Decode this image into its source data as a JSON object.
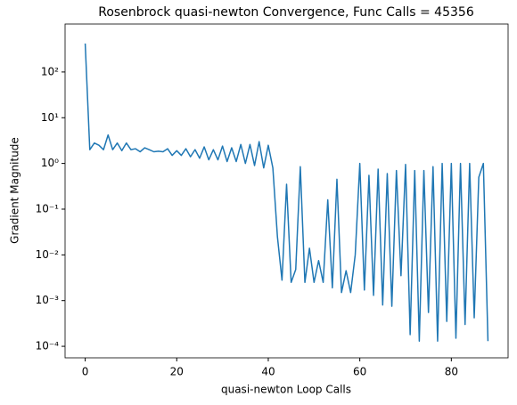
{
  "chart_data": {
    "type": "line",
    "title": "Rosenbrock quasi-newton Convergence, Func Calls = 45356",
    "xlabel": "quasi-newton Loop Calls",
    "ylabel": "Gradient Magnitude",
    "log_y": true,
    "x": [
      0,
      1,
      2,
      3,
      4,
      5,
      6,
      7,
      8,
      9,
      10,
      11,
      12,
      13,
      14,
      15,
      16,
      17,
      18,
      19,
      20,
      21,
      22,
      23,
      24,
      25,
      26,
      27,
      28,
      29,
      30,
      31,
      32,
      33,
      34,
      35,
      36,
      37,
      38,
      39,
      40,
      41,
      42,
      43,
      44,
      45,
      46,
      47,
      48,
      49,
      50,
      51,
      52,
      53,
      54,
      55,
      56,
      57,
      58,
      59,
      60,
      61,
      62,
      63,
      64,
      65,
      66,
      67,
      68,
      69,
      70,
      71,
      72,
      73,
      74,
      75,
      76,
      77,
      78,
      79,
      80,
      81,
      82,
      83,
      84,
      85,
      86,
      87,
      88
    ],
    "series": [
      {
        "color": "#1f77b4",
        "values": [
          420,
          2.0,
          2.8,
          2.5,
          2.0,
          4.2,
          2.0,
          2.8,
          1.9,
          2.8,
          2.0,
          2.1,
          1.8,
          2.2,
          2.0,
          1.8,
          1.85,
          1.8,
          2.1,
          1.5,
          1.9,
          1.5,
          2.1,
          1.4,
          2.0,
          1.3,
          2.3,
          1.2,
          2.0,
          1.2,
          2.4,
          1.1,
          2.2,
          1.1,
          2.6,
          1.0,
          2.6,
          0.9,
          3.0,
          0.8,
          2.5,
          0.8,
          0.025,
          0.0028,
          0.35,
          0.0025,
          0.0048,
          0.85,
          0.0025,
          0.014,
          0.0025,
          0.0075,
          0.0025,
          0.16,
          0.0019,
          0.45,
          0.0015,
          0.0045,
          0.0015,
          0.01,
          1.0,
          0.0017,
          0.55,
          0.0013,
          0.75,
          0.0008,
          0.6,
          0.00075,
          0.7,
          0.0035,
          0.95,
          0.00018,
          0.7,
          0.00013,
          0.7,
          0.00055,
          0.85,
          0.00013,
          1.0,
          0.00035,
          1.0,
          0.00015,
          1.0,
          0.0003,
          1.0,
          0.00042,
          0.5,
          1.0,
          0.00013
        ]
      }
    ],
    "xlim": [
      -4.4,
      92.4
    ],
    "xticks": [
      0,
      20,
      40,
      60,
      80
    ],
    "ylim": [
      5.6e-05,
      1120
    ],
    "yticks": [
      {
        "value": 0.0001,
        "label": "10⁻⁴"
      },
      {
        "value": 0.001,
        "label": "10⁻³"
      },
      {
        "value": 0.01,
        "label": "10⁻²"
      },
      {
        "value": 0.1,
        "label": "10⁻¹"
      },
      {
        "value": 1,
        "label": "10⁰"
      },
      {
        "value": 10,
        "label": "10¹"
      },
      {
        "value": 100,
        "label": "10²"
      }
    ]
  }
}
